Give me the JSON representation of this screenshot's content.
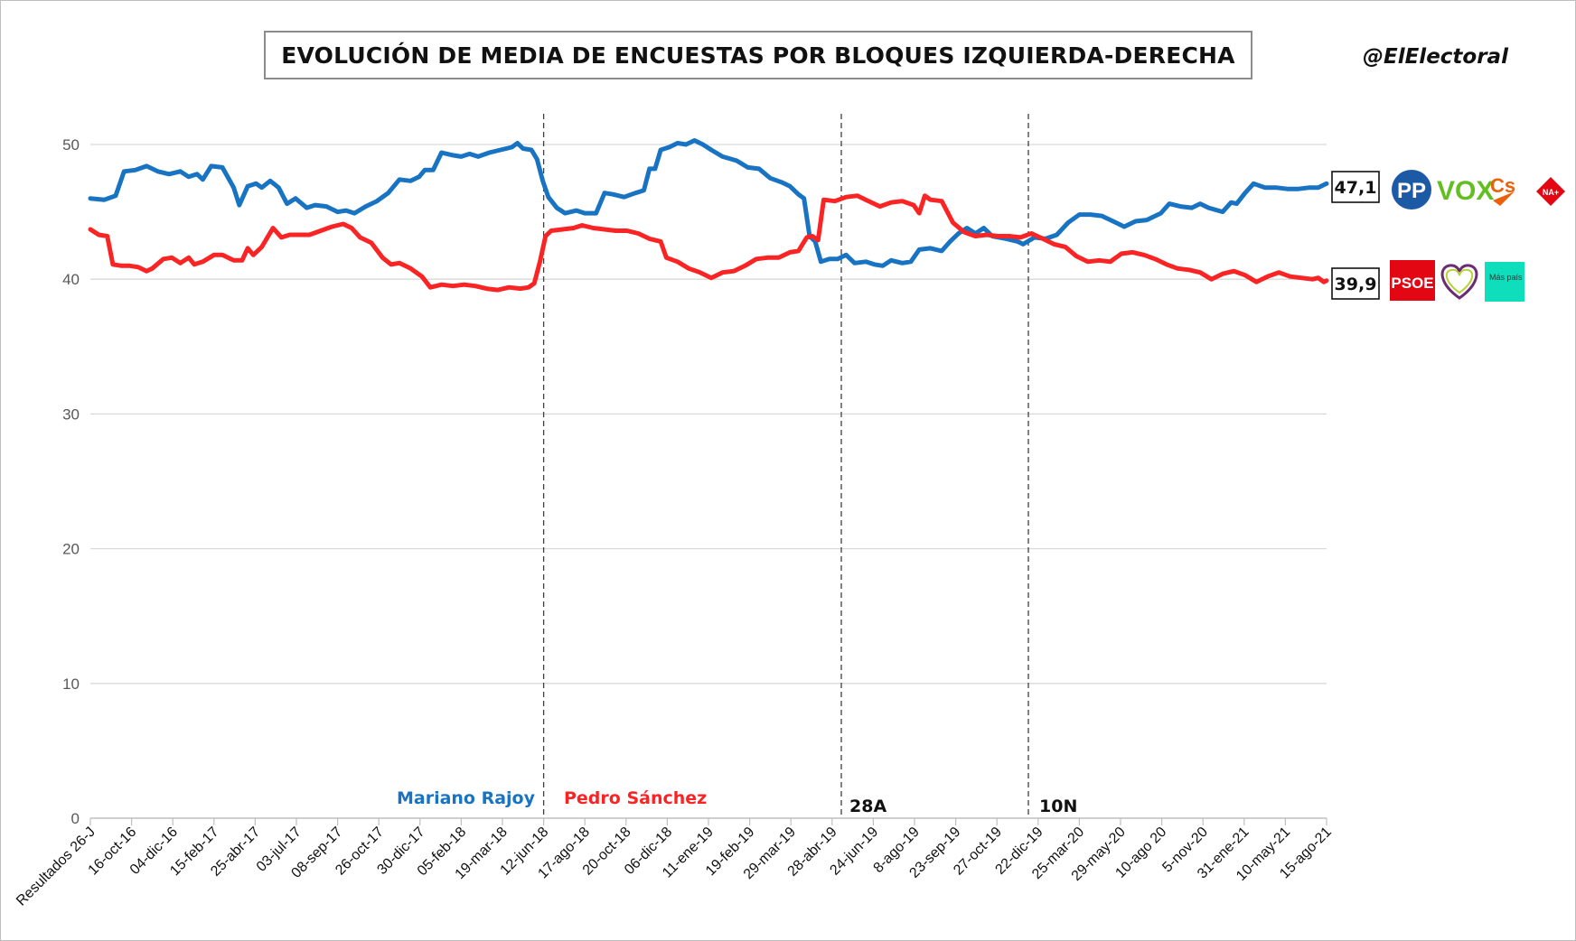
{
  "title": "EVOLUCIÓN DE MEDIA DE ENCUESTAS POR BLOQUES IZQUIERDA-DERECHA",
  "handle": "@ElElectoral",
  "colors": {
    "right": "#1874c2",
    "left": "#fb2424",
    "grid": "#d9d9d9",
    "axis": "#595959"
  },
  "final_values": {
    "right": "47,1",
    "left": "39,9"
  },
  "logos": {
    "right": [
      {
        "icon": "pp-logo-icon",
        "text": "PP"
      },
      {
        "icon": "vox-logo-icon",
        "text": "VOX"
      },
      {
        "icon": "cs-logo-icon",
        "text": "Cs"
      },
      {
        "icon": "na-plus-logo-icon",
        "text": "NA+"
      }
    ],
    "left": [
      {
        "icon": "psoe-logo-icon",
        "text": "PSOE"
      },
      {
        "icon": "podemos-heart-logo-icon",
        "text": ""
      },
      {
        "icon": "mas-pais-logo-icon",
        "text": "Más país"
      }
    ]
  },
  "annotations": [
    {
      "label": "Mariano Rajoy",
      "color": "#1874c2"
    },
    {
      "label": "Pedro Sánchez",
      "color": "#fb2424"
    },
    {
      "label": "28A",
      "color": "#111111"
    },
    {
      "label": "10N",
      "color": "#111111"
    }
  ],
  "chart_data": {
    "type": "line",
    "title": "EVOLUCIÓN DE MEDIA DE ENCUESTAS POR BLOQUES IZQUIERDA-DERECHA",
    "xlabel": "",
    "ylabel": "",
    "ylim": [
      0,
      50
    ],
    "yticks": [
      0,
      10,
      20,
      30,
      40,
      50
    ],
    "grid": true,
    "legend": "none",
    "x_tick_labels": [
      "Resultados 26-J",
      "16-oct-16",
      "04-dic-16",
      "15-feb-17",
      "25-abr-17",
      "03-jul-17",
      "08-sep-17",
      "26-oct-17",
      "30-dic-17",
      "05-feb-18",
      "19-mar-18",
      "12-jun-18",
      "17-ago-18",
      "20-oct-18",
      "06-dic-18",
      "11-ene-19",
      "19-feb-19",
      "29-mar-19",
      "28-abr-19",
      "24-jun-19",
      "8-ago-19",
      "23-sep-19",
      "27-oct-19",
      "22-dic-19",
      "25-mar-20",
      "29-may-20",
      "10-ago 20",
      "5-nov-20",
      "31-ene-21",
      "10-may-21",
      "15-ago-21"
    ],
    "vertical_markers": [
      {
        "label": "12-jun-18"
      },
      {
        "label": "28-abr-19"
      },
      {
        "label": "10N"
      }
    ],
    "series": [
      {
        "key": "right",
        "color": "#1874c2",
        "final_label": "47,1",
        "points": [
          [
            0,
            46
          ],
          [
            0.25,
            45.9
          ],
          [
            0.45,
            46.2
          ],
          [
            0.6,
            48
          ],
          [
            0.8,
            48.1
          ],
          [
            1,
            48.4
          ],
          [
            1.2,
            48
          ],
          [
            1.4,
            47.8
          ],
          [
            1.6,
            48
          ],
          [
            1.75,
            47.6
          ],
          [
            1.9,
            47.8
          ],
          [
            2,
            47.4
          ],
          [
            2.15,
            48.4
          ],
          [
            2.35,
            48.3
          ],
          [
            2.55,
            46.8
          ],
          [
            2.65,
            45.5
          ],
          [
            2.8,
            46.9
          ],
          [
            2.95,
            47.1
          ],
          [
            3.05,
            46.8
          ],
          [
            3.2,
            47.3
          ],
          [
            3.35,
            46.8
          ],
          [
            3.5,
            45.6
          ],
          [
            3.65,
            46
          ],
          [
            3.85,
            45.3
          ],
          [
            4,
            45.5
          ],
          [
            4.2,
            45.4
          ],
          [
            4.4,
            45
          ],
          [
            4.55,
            45.1
          ],
          [
            4.7,
            44.9
          ],
          [
            4.9,
            45.4
          ],
          [
            5.1,
            45.8
          ],
          [
            5.3,
            46.4
          ],
          [
            5.5,
            47.4
          ],
          [
            5.7,
            47.3
          ],
          [
            5.85,
            47.6
          ],
          [
            5.95,
            48.1
          ],
          [
            6.1,
            48.1
          ],
          [
            6.25,
            49.4
          ],
          [
            6.45,
            49.2
          ],
          [
            6.6,
            49.1
          ],
          [
            6.75,
            49.3
          ],
          [
            6.9,
            49.1
          ],
          [
            7.1,
            49.4
          ],
          [
            7.3,
            49.6
          ],
          [
            7.5,
            49.8
          ],
          [
            7.6,
            50.1
          ],
          [
            7.7,
            49.7
          ],
          [
            7.85,
            49.6
          ],
          [
            7.95,
            48.9
          ],
          [
            8.05,
            47.3
          ],
          [
            8.15,
            46.1
          ],
          [
            8.3,
            45.3
          ],
          [
            8.45,
            44.9
          ],
          [
            8.65,
            45.1
          ],
          [
            8.8,
            44.9
          ],
          [
            9,
            44.9
          ],
          [
            9.15,
            46.4
          ],
          [
            9.3,
            46.3
          ],
          [
            9.5,
            46.1
          ],
          [
            9.7,
            46.4
          ],
          [
            9.85,
            46.6
          ],
          [
            9.95,
            48.2
          ],
          [
            10.05,
            48.2
          ],
          [
            10.15,
            49.6
          ],
          [
            10.3,
            49.8
          ],
          [
            10.45,
            50.1
          ],
          [
            10.6,
            50
          ],
          [
            10.75,
            50.3
          ],
          [
            10.9,
            50
          ],
          [
            11.05,
            49.6
          ],
          [
            11.25,
            49.1
          ],
          [
            11.5,
            48.8
          ],
          [
            11.7,
            48.3
          ],
          [
            11.9,
            48.2
          ],
          [
            12.1,
            47.5
          ],
          [
            12.3,
            47.2
          ],
          [
            12.45,
            46.9
          ],
          [
            12.6,
            46.3
          ],
          [
            12.7,
            46
          ],
          [
            12.8,
            43.2
          ],
          [
            12.9,
            42.8
          ],
          [
            13,
            41.3
          ],
          [
            13.15,
            41.5
          ],
          [
            13.3,
            41.5
          ],
          [
            13.45,
            41.8
          ],
          [
            13.6,
            41.2
          ],
          [
            13.8,
            41.3
          ],
          [
            13.95,
            41.1
          ],
          [
            14.1,
            41
          ],
          [
            14.25,
            41.4
          ],
          [
            14.45,
            41.2
          ],
          [
            14.6,
            41.3
          ],
          [
            14.75,
            42.2
          ],
          [
            14.95,
            42.3
          ],
          [
            15.15,
            42.1
          ],
          [
            15.3,
            42.8
          ],
          [
            15.45,
            43.4
          ],
          [
            15.6,
            43.8
          ],
          [
            15.75,
            43.4
          ],
          [
            15.9,
            43.8
          ],
          [
            16.05,
            43.2
          ],
          [
            16.3,
            43
          ],
          [
            16.5,
            42.8
          ],
          [
            16.6,
            42.6
          ],
          [
            16.8,
            43.1
          ],
          [
            17,
            43
          ],
          [
            17.2,
            43.3
          ],
          [
            17.4,
            44.2
          ],
          [
            17.6,
            44.8
          ],
          [
            17.8,
            44.8
          ],
          [
            18,
            44.7
          ],
          [
            18.2,
            44.3
          ],
          [
            18.4,
            43.9
          ],
          [
            18.6,
            44.3
          ],
          [
            18.8,
            44.4
          ],
          [
            19.05,
            44.9
          ],
          [
            19.2,
            45.6
          ],
          [
            19.4,
            45.4
          ],
          [
            19.6,
            45.3
          ],
          [
            19.75,
            45.6
          ],
          [
            19.9,
            45.3
          ],
          [
            20.15,
            45
          ],
          [
            20.3,
            45.7
          ],
          [
            20.4,
            45.6
          ],
          [
            20.55,
            46.4
          ],
          [
            20.7,
            47.1
          ],
          [
            20.9,
            46.8
          ],
          [
            21.1,
            46.8
          ],
          [
            21.3,
            46.7
          ],
          [
            21.5,
            46.7
          ],
          [
            21.7,
            46.8
          ],
          [
            21.85,
            46.8
          ],
          [
            22,
            47.1
          ]
        ]
      },
      {
        "key": "left",
        "color": "#fb2424",
        "final_label": "39,9",
        "points": [
          [
            0,
            43.7
          ],
          [
            0.15,
            43.3
          ],
          [
            0.3,
            43.2
          ],
          [
            0.4,
            41.1
          ],
          [
            0.55,
            41
          ],
          [
            0.7,
            41
          ],
          [
            0.85,
            40.9
          ],
          [
            1,
            40.6
          ],
          [
            1.1,
            40.8
          ],
          [
            1.3,
            41.5
          ],
          [
            1.45,
            41.6
          ],
          [
            1.6,
            41.2
          ],
          [
            1.75,
            41.6
          ],
          [
            1.85,
            41.1
          ],
          [
            2,
            41.3
          ],
          [
            2.2,
            41.8
          ],
          [
            2.35,
            41.8
          ],
          [
            2.55,
            41.4
          ],
          [
            2.7,
            41.4
          ],
          [
            2.8,
            42.3
          ],
          [
            2.9,
            41.8
          ],
          [
            3.05,
            42.4
          ],
          [
            3.25,
            43.8
          ],
          [
            3.4,
            43.1
          ],
          [
            3.55,
            43.3
          ],
          [
            3.7,
            43.3
          ],
          [
            3.9,
            43.3
          ],
          [
            4.1,
            43.6
          ],
          [
            4.3,
            43.9
          ],
          [
            4.5,
            44.1
          ],
          [
            4.65,
            43.8
          ],
          [
            4.8,
            43.1
          ],
          [
            5,
            42.7
          ],
          [
            5.2,
            41.6
          ],
          [
            5.35,
            41.1
          ],
          [
            5.5,
            41.2
          ],
          [
            5.7,
            40.8
          ],
          [
            5.9,
            40.2
          ],
          [
            6.05,
            39.4
          ],
          [
            6.25,
            39.6
          ],
          [
            6.45,
            39.5
          ],
          [
            6.65,
            39.6
          ],
          [
            6.85,
            39.5
          ],
          [
            7.05,
            39.3
          ],
          [
            7.25,
            39.2
          ],
          [
            7.45,
            39.4
          ],
          [
            7.65,
            39.3
          ],
          [
            7.8,
            39.4
          ],
          [
            7.9,
            39.7
          ],
          [
            8,
            41.3
          ],
          [
            8.1,
            43.2
          ],
          [
            8.2,
            43.6
          ],
          [
            8.4,
            43.7
          ],
          [
            8.6,
            43.8
          ],
          [
            8.75,
            44
          ],
          [
            8.95,
            43.8
          ],
          [
            9.15,
            43.7
          ],
          [
            9.35,
            43.6
          ],
          [
            9.55,
            43.6
          ],
          [
            9.75,
            43.4
          ],
          [
            9.95,
            43
          ],
          [
            10.15,
            42.8
          ],
          [
            10.25,
            41.6
          ],
          [
            10.45,
            41.3
          ],
          [
            10.65,
            40.8
          ],
          [
            10.85,
            40.5
          ],
          [
            11.05,
            40.1
          ],
          [
            11.25,
            40.5
          ],
          [
            11.45,
            40.6
          ],
          [
            11.65,
            41
          ],
          [
            11.85,
            41.5
          ],
          [
            12.05,
            41.6
          ],
          [
            12.25,
            41.6
          ],
          [
            12.45,
            42
          ],
          [
            12.6,
            42.1
          ],
          [
            12.75,
            43.1
          ],
          [
            12.85,
            43.2
          ],
          [
            12.95,
            42.9
          ],
          [
            13.05,
            45.9
          ],
          [
            13.25,
            45.8
          ],
          [
            13.45,
            46.1
          ],
          [
            13.65,
            46.2
          ],
          [
            13.85,
            45.8
          ],
          [
            14.05,
            45.4
          ],
          [
            14.25,
            45.7
          ],
          [
            14.45,
            45.8
          ],
          [
            14.65,
            45.5
          ],
          [
            14.75,
            44.9
          ],
          [
            14.85,
            46.2
          ],
          [
            14.95,
            45.9
          ],
          [
            15.15,
            45.8
          ],
          [
            15.35,
            44.2
          ],
          [
            15.55,
            43.5
          ],
          [
            15.75,
            43.2
          ],
          [
            15.95,
            43.3
          ],
          [
            16.15,
            43.2
          ],
          [
            16.35,
            43.2
          ],
          [
            16.55,
            43.1
          ],
          [
            16.75,
            43.4
          ],
          [
            16.95,
            43
          ],
          [
            17.15,
            42.6
          ],
          [
            17.35,
            42.4
          ],
          [
            17.55,
            41.7
          ],
          [
            17.75,
            41.3
          ],
          [
            17.95,
            41.4
          ],
          [
            18.15,
            41.3
          ],
          [
            18.35,
            41.9
          ],
          [
            18.55,
            42
          ],
          [
            18.75,
            41.8
          ],
          [
            18.95,
            41.5
          ],
          [
            19.15,
            41.1
          ],
          [
            19.35,
            40.8
          ],
          [
            19.55,
            40.7
          ],
          [
            19.75,
            40.5
          ],
          [
            19.95,
            40
          ],
          [
            20.15,
            40.4
          ],
          [
            20.35,
            40.6
          ],
          [
            20.55,
            40.3
          ],
          [
            20.75,
            39.8
          ],
          [
            20.95,
            40.2
          ],
          [
            21.15,
            40.5
          ],
          [
            21.35,
            40.2
          ],
          [
            21.55,
            40.1
          ],
          [
            21.75,
            40
          ],
          [
            21.85,
            40.1
          ],
          [
            21.95,
            39.8
          ],
          [
            22,
            39.9
          ]
        ]
      }
    ]
  }
}
